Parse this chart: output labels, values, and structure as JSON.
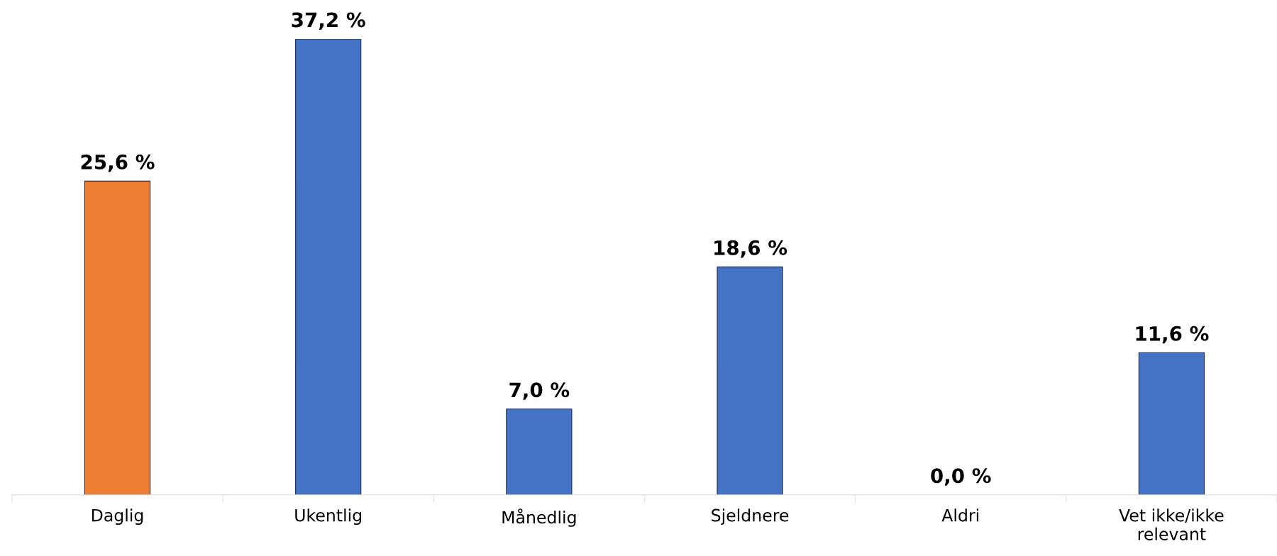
{
  "chart_data": {
    "type": "bar",
    "categories": [
      "Daglig",
      "Ukentlig",
      "Månedlig",
      "Sjeldnere",
      "Aldri",
      "Vet ikke/ikke relevant"
    ],
    "values": [
      25.6,
      37.2,
      7.0,
      18.6,
      0.0,
      11.6
    ],
    "colors": [
      "#ed7d31",
      "#4472c4",
      "#4472c4",
      "#4472c4",
      "#4472c4",
      "#4472c4"
    ],
    "value_labels": [
      "25,6 %",
      "37,2 %",
      "7,0 %",
      "18,6 %",
      "0,0 %",
      "11,6 %"
    ],
    "grid": false,
    "legend": false
  }
}
